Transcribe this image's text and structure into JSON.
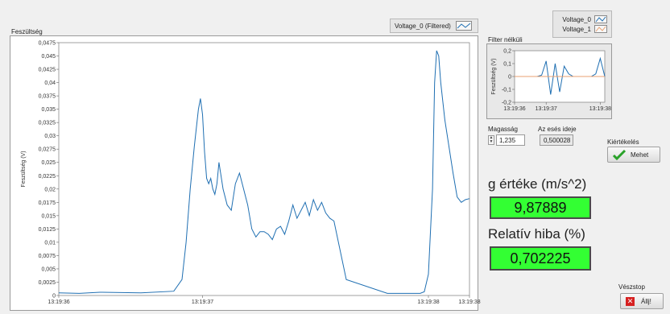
{
  "main_chart": {
    "title": "Feszültség",
    "legend_label": "Voltage_0 (Filtered)",
    "ylabel": "Feszültség (V)",
    "line_color": "#1f6fb2"
  },
  "small_chart": {
    "title": "Filter nélküli",
    "legend": [
      "Voltage_0",
      "Voltage_1"
    ],
    "ylabel": "Feszültség (V)",
    "line_color": "#1f6fb2"
  },
  "controls": {
    "height_label": "Magasság",
    "height_value": "1,235",
    "fall_time_label": "Az esés ideje",
    "fall_time_value": "0,500028",
    "evaluate_label": "Kiértékelés",
    "evaluate_button": "Mehet",
    "g_label": "g értéke (m/s^2)",
    "g_value": "9,87889",
    "error_label": "Relatív hiba (%)",
    "error_value": "0,702225",
    "stop_label": "Vészstop",
    "stop_button": "Állj!"
  },
  "icons": {
    "evaluate": "checkmark-icon",
    "stop": "stop-x-icon"
  },
  "chart_data": [
    {
      "type": "line",
      "ylabel": "Feszültség (V)",
      "ylim": [
        0,
        0.0475
      ],
      "y_ticks": [
        "0",
        "0,0025",
        "0,005",
        "0,0075",
        "0,01",
        "0,0125",
        "0,015",
        "0,0175",
        "0,02",
        "0,0225",
        "0,025",
        "0,0275",
        "0,03",
        "0,0325",
        "0,035",
        "0,0375",
        "0,04",
        "0,0425",
        "0,045",
        "0,0475"
      ],
      "x_ticks": [
        "13:19:36",
        "13:19:37",
        "13:19:38",
        "13:19:38"
      ],
      "xlim": [
        0,
        1
      ],
      "x_tick_positions": [
        0,
        0.35,
        0.9,
        1.0
      ],
      "series": [
        {
          "name": "Voltage_0 (Filtered)",
          "x": [
            0,
            0.05,
            0.1,
            0.2,
            0.28,
            0.3,
            0.31,
            0.32,
            0.33,
            0.34,
            0.345,
            0.35,
            0.355,
            0.36,
            0.365,
            0.37,
            0.375,
            0.38,
            0.385,
            0.39,
            0.4,
            0.41,
            0.42,
            0.43,
            0.44,
            0.45,
            0.46,
            0.47,
            0.48,
            0.49,
            0.5,
            0.51,
            0.52,
            0.53,
            0.54,
            0.55,
            0.56,
            0.57,
            0.58,
            0.6,
            0.61,
            0.62,
            0.63,
            0.64,
            0.65,
            0.66,
            0.67,
            0.7,
            0.8,
            0.88,
            0.89,
            0.9,
            0.91,
            0.915,
            0.92,
            0.925,
            0.93,
            0.94,
            0.95,
            0.96,
            0.97,
            0.98,
            0.99,
            1.0
          ],
          "values": [
            0.0005,
            0.0004,
            0.0006,
            0.0005,
            0.0008,
            0.003,
            0.01,
            0.02,
            0.028,
            0.035,
            0.037,
            0.034,
            0.027,
            0.022,
            0.021,
            0.022,
            0.02,
            0.019,
            0.021,
            0.025,
            0.02,
            0.017,
            0.016,
            0.021,
            0.023,
            0.02,
            0.017,
            0.0125,
            0.011,
            0.012,
            0.012,
            0.0115,
            0.0105,
            0.0125,
            0.013,
            0.0115,
            0.014,
            0.017,
            0.0145,
            0.0175,
            0.015,
            0.018,
            0.016,
            0.0175,
            0.0155,
            0.0145,
            0.014,
            0.003,
            0.0004,
            0.0004,
            0.0007,
            0.004,
            0.02,
            0.04,
            0.046,
            0.045,
            0.04,
            0.033,
            0.028,
            0.023,
            0.0185,
            0.0175,
            0.018,
            0.0182
          ]
        }
      ]
    },
    {
      "type": "line",
      "ylabel": "Feszültség (V)",
      "ylim": [
        -0.2,
        0.2
      ],
      "y_ticks": [
        "0,2",
        "0,1",
        "0",
        "-0,1",
        "-0,2"
      ],
      "x_ticks": [
        "13:19:36",
        "13:19:37",
        "13:19:38"
      ],
      "x_tick_positions": [
        0,
        0.35,
        0.95
      ],
      "series": [
        {
          "name": "Voltage_0",
          "x": [
            0,
            0.05,
            0.1,
            0.15,
            0.2,
            0.25,
            0.3,
            0.35,
            0.4,
            0.45,
            0.5,
            0.55,
            0.6,
            0.65,
            0.7,
            0.75,
            0.8,
            0.85,
            0.9,
            0.95,
            1.0
          ],
          "values": [
            0,
            0,
            0,
            0,
            0,
            0,
            0.01,
            0.12,
            -0.14,
            0.1,
            -0.12,
            0.08,
            0.02,
            0,
            0,
            0,
            0,
            0,
            0.02,
            0.14,
            0
          ]
        },
        {
          "name": "Voltage_1",
          "x": [
            0,
            1
          ],
          "values": [
            0,
            0
          ]
        }
      ]
    }
  ]
}
